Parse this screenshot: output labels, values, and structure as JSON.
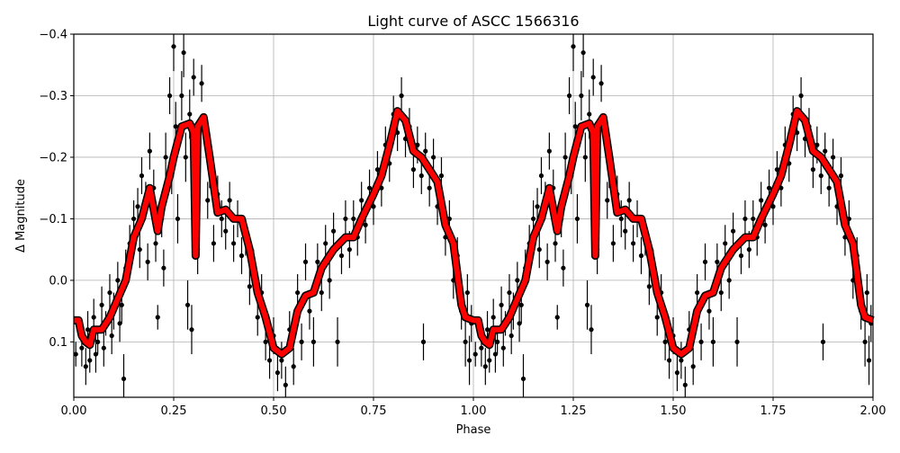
{
  "chart_data": {
    "type": "scatter",
    "title": "Light curve of ASCC 1566316",
    "xlabel": "Phase",
    "ylabel": "Δ Magnitude",
    "xlim": [
      0,
      2
    ],
    "ylim": [
      -0.4,
      0.19
    ],
    "y_inverted": true,
    "grid": true,
    "xticks": [
      "0.00",
      "0.25",
      "0.50",
      "0.75",
      "1.00",
      "1.25",
      "1.50",
      "1.75",
      "2.00"
    ],
    "xtick_values": [
      0,
      0.25,
      0.5,
      0.75,
      1,
      1.25,
      1.5,
      1.75,
      2
    ],
    "yticks": [
      "−0.4",
      "−0.3",
      "−0.2",
      "−0.1",
      "0.0",
      "0.1"
    ],
    "ytick_values": [
      -0.4,
      -0.3,
      -0.2,
      -0.1,
      0,
      0.1
    ],
    "colors": {
      "points": "#000000",
      "model": "#ff0000",
      "grid": "#b0b0b0"
    },
    "points_phase_mag_err": [
      [
        0.005,
        0.12,
        0.02
      ],
      [
        0.02,
        0.11,
        0.03
      ],
      [
        0.03,
        0.14,
        0.03
      ],
      [
        0.035,
        0.08,
        0.03
      ],
      [
        0.04,
        0.13,
        0.02
      ],
      [
        0.05,
        0.06,
        0.03
      ],
      [
        0.055,
        0.12,
        0.03
      ],
      [
        0.06,
        0.1,
        0.02
      ],
      [
        0.07,
        0.04,
        0.03
      ],
      [
        0.075,
        0.11,
        0.03
      ],
      [
        0.08,
        0.07,
        0.02
      ],
      [
        0.09,
        0.02,
        0.03
      ],
      [
        0.095,
        0.09,
        0.03
      ],
      [
        0.1,
        0.05,
        0.03
      ],
      [
        0.11,
        0.0,
        0.03
      ],
      [
        0.115,
        0.07,
        0.03
      ],
      [
        0.12,
        0.04,
        0.03
      ],
      [
        0.125,
        0.16,
        0.04
      ],
      [
        0.13,
        -0.02,
        0.03
      ],
      [
        0.14,
        -0.06,
        0.03
      ],
      [
        0.15,
        -0.1,
        0.03
      ],
      [
        0.16,
        -0.12,
        0.03
      ],
      [
        0.165,
        -0.05,
        0.03
      ],
      [
        0.17,
        -0.17,
        0.03
      ],
      [
        0.18,
        -0.13,
        0.03
      ],
      [
        0.185,
        -0.03,
        0.03
      ],
      [
        0.19,
        -0.21,
        0.03
      ],
      [
        0.2,
        -0.15,
        0.03
      ],
      [
        0.205,
        -0.06,
        0.03
      ],
      [
        0.21,
        0.06,
        0.02
      ],
      [
        0.22,
        -0.1,
        0.03
      ],
      [
        0.225,
        -0.02,
        0.03
      ],
      [
        0.23,
        -0.2,
        0.04
      ],
      [
        0.24,
        -0.3,
        0.03
      ],
      [
        0.245,
        -0.17,
        0.03
      ],
      [
        0.25,
        -0.38,
        0.04
      ],
      [
        0.255,
        -0.25,
        0.04
      ],
      [
        0.26,
        -0.1,
        0.04
      ],
      [
        0.27,
        -0.3,
        0.04
      ],
      [
        0.275,
        -0.37,
        0.04
      ],
      [
        0.28,
        -0.2,
        0.04
      ],
      [
        0.285,
        0.04,
        0.04
      ],
      [
        0.29,
        -0.27,
        0.04
      ],
      [
        0.295,
        0.08,
        0.04
      ],
      [
        0.3,
        -0.33,
        0.03
      ],
      [
        0.31,
        -0.05,
        0.04
      ],
      [
        0.32,
        -0.32,
        0.03
      ],
      [
        0.33,
        -0.24,
        0.03
      ],
      [
        0.335,
        -0.13,
        0.03
      ],
      [
        0.34,
        -0.18,
        0.03
      ],
      [
        0.35,
        -0.06,
        0.03
      ],
      [
        0.36,
        -0.14,
        0.03
      ],
      [
        0.37,
        -0.1,
        0.03
      ],
      [
        0.38,
        -0.08,
        0.03
      ],
      [
        0.39,
        -0.13,
        0.03
      ],
      [
        0.4,
        -0.06,
        0.03
      ],
      [
        0.41,
        -0.1,
        0.03
      ],
      [
        0.42,
        -0.04,
        0.03
      ],
      [
        0.43,
        -0.07,
        0.03
      ],
      [
        0.44,
        0.01,
        0.03
      ],
      [
        0.45,
        -0.02,
        0.03
      ],
      [
        0.46,
        0.06,
        0.03
      ],
      [
        0.47,
        0.02,
        0.03
      ],
      [
        0.48,
        0.1,
        0.03
      ],
      [
        0.49,
        0.13,
        0.03
      ],
      [
        0.5,
        0.09,
        0.03
      ],
      [
        0.51,
        0.15,
        0.03
      ],
      [
        0.52,
        0.13,
        0.03
      ],
      [
        0.53,
        0.17,
        0.03
      ],
      [
        0.54,
        0.08,
        0.03
      ],
      [
        0.55,
        0.14,
        0.03
      ],
      [
        0.56,
        0.02,
        0.03
      ],
      [
        0.57,
        0.1,
        0.03
      ],
      [
        0.58,
        -0.03,
        0.03
      ],
      [
        0.59,
        0.05,
        0.03
      ],
      [
        0.6,
        0.1,
        0.04
      ],
      [
        0.61,
        -0.03,
        0.03
      ],
      [
        0.62,
        0.02,
        0.03
      ],
      [
        0.63,
        -0.06,
        0.03
      ],
      [
        0.64,
        0.0,
        0.03
      ],
      [
        0.65,
        -0.08,
        0.03
      ],
      [
        0.66,
        0.1,
        0.04
      ],
      [
        0.67,
        -0.04,
        0.03
      ],
      [
        0.68,
        -0.1,
        0.03
      ],
      [
        0.69,
        -0.05,
        0.03
      ],
      [
        0.7,
        -0.1,
        0.03
      ],
      [
        0.71,
        -0.07,
        0.03
      ],
      [
        0.72,
        -0.13,
        0.03
      ],
      [
        0.73,
        -0.09,
        0.03
      ],
      [
        0.74,
        -0.15,
        0.03
      ],
      [
        0.75,
        -0.12,
        0.03
      ],
      [
        0.76,
        -0.18,
        0.03
      ],
      [
        0.77,
        -0.15,
        0.03
      ],
      [
        0.78,
        -0.22,
        0.03
      ],
      [
        0.79,
        -0.19,
        0.03
      ],
      [
        0.8,
        -0.27,
        0.03
      ],
      [
        0.81,
        -0.24,
        0.03
      ],
      [
        0.82,
        -0.3,
        0.03
      ],
      [
        0.83,
        -0.23,
        0.03
      ],
      [
        0.84,
        -0.25,
        0.03
      ],
      [
        0.85,
        -0.18,
        0.03
      ],
      [
        0.86,
        -0.22,
        0.03
      ],
      [
        0.87,
        -0.17,
        0.03
      ],
      [
        0.875,
        0.1,
        0.03
      ],
      [
        0.88,
        -0.21,
        0.03
      ],
      [
        0.89,
        -0.15,
        0.03
      ],
      [
        0.9,
        -0.2,
        0.03
      ],
      [
        0.91,
        -0.12,
        0.03
      ],
      [
        0.92,
        -0.17,
        0.03
      ],
      [
        0.93,
        -0.07,
        0.03
      ],
      [
        0.94,
        -0.1,
        0.03
      ],
      [
        0.95,
        0.0,
        0.03
      ],
      [
        0.96,
        -0.04,
        0.03
      ],
      [
        0.97,
        0.05,
        0.03
      ],
      [
        0.98,
        0.1,
        0.04
      ],
      [
        0.985,
        0.02,
        0.03
      ],
      [
        0.99,
        0.13,
        0.04
      ],
      [
        0.995,
        0.07,
        0.03
      ]
    ],
    "model_phase_mag": [
      [
        0.0,
        0.065
      ],
      [
        0.012,
        0.065
      ],
      [
        0.02,
        0.09
      ],
      [
        0.03,
        0.1
      ],
      [
        0.04,
        0.105
      ],
      [
        0.05,
        0.08
      ],
      [
        0.07,
        0.08
      ],
      [
        0.09,
        0.06
      ],
      [
        0.11,
        0.03
      ],
      [
        0.13,
        0.0
      ],
      [
        0.15,
        -0.07
      ],
      [
        0.17,
        -0.1
      ],
      [
        0.19,
        -0.15
      ],
      [
        0.21,
        -0.08
      ],
      [
        0.22,
        -0.12
      ],
      [
        0.24,
        -0.17
      ],
      [
        0.25,
        -0.2
      ],
      [
        0.27,
        -0.25
      ],
      [
        0.29,
        -0.255
      ],
      [
        0.3,
        -0.24
      ],
      [
        0.305,
        -0.04
      ],
      [
        0.31,
        -0.25
      ],
      [
        0.325,
        -0.265
      ],
      [
        0.34,
        -0.2
      ],
      [
        0.36,
        -0.11
      ],
      [
        0.38,
        -0.115
      ],
      [
        0.4,
        -0.1
      ],
      [
        0.42,
        -0.1
      ],
      [
        0.44,
        -0.05
      ],
      [
        0.46,
        0.02
      ],
      [
        0.48,
        0.06
      ],
      [
        0.5,
        0.11
      ],
      [
        0.52,
        0.12
      ],
      [
        0.54,
        0.11
      ],
      [
        0.56,
        0.05
      ],
      [
        0.58,
        0.025
      ],
      [
        0.6,
        0.02
      ],
      [
        0.62,
        -0.02
      ],
      [
        0.65,
        -0.05
      ],
      [
        0.68,
        -0.07
      ],
      [
        0.7,
        -0.07
      ],
      [
        0.72,
        -0.1
      ],
      [
        0.75,
        -0.14
      ],
      [
        0.77,
        -0.17
      ],
      [
        0.79,
        -0.22
      ],
      [
        0.81,
        -0.275
      ],
      [
        0.83,
        -0.26
      ],
      [
        0.85,
        -0.21
      ],
      [
        0.87,
        -0.2
      ],
      [
        0.89,
        -0.18
      ],
      [
        0.91,
        -0.16
      ],
      [
        0.93,
        -0.09
      ],
      [
        0.95,
        -0.06
      ],
      [
        0.97,
        0.04
      ],
      [
        0.98,
        0.06
      ],
      [
        1.0,
        0.065
      ]
    ]
  }
}
